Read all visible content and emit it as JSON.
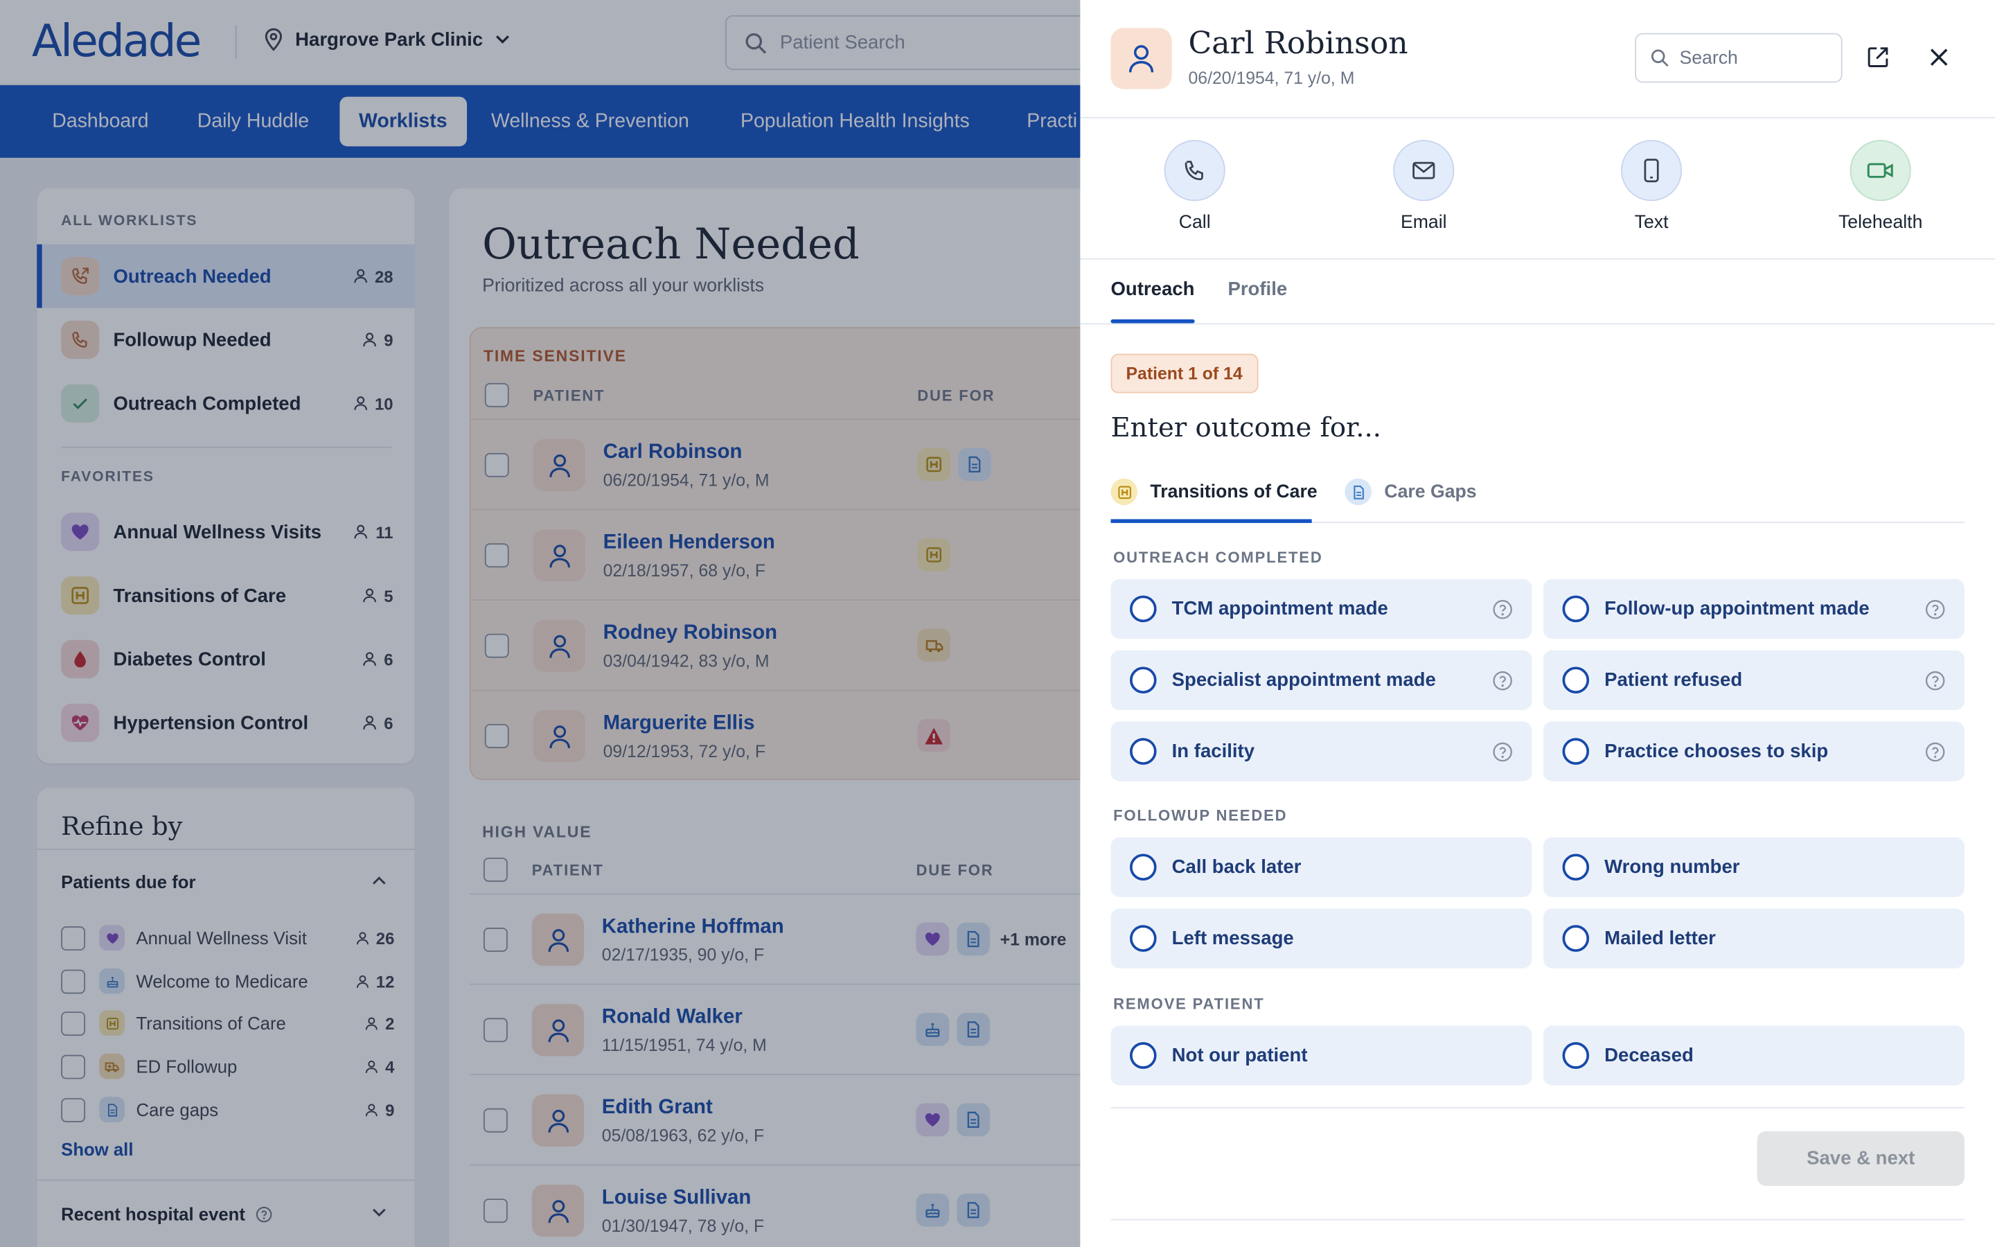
{
  "header": {
    "logo": "Aledade",
    "clinic": "Hargrove Park Clinic",
    "search_placeholder": "Patient Search"
  },
  "nav": [
    {
      "label": "Dashboard"
    },
    {
      "label": "Daily Huddle"
    },
    {
      "label": "Worklists"
    },
    {
      "label": "Wellness & Prevention"
    },
    {
      "label": "Population Health Insights"
    },
    {
      "label": "Practi"
    }
  ],
  "sidebar": {
    "all_label": "ALL WORKLISTS",
    "all": [
      {
        "label": "Outreach Needed",
        "count": "28",
        "icon": "phone-outgoing-icon"
      },
      {
        "label": "Followup Needed",
        "count": "9",
        "icon": "phone-icon"
      },
      {
        "label": "Outreach Completed",
        "count": "10",
        "icon": "check-icon"
      }
    ],
    "fav_label": "FAVORITES",
    "favorites": [
      {
        "label": "Annual Wellness Visits",
        "count": "11",
        "icon": "heart-icon"
      },
      {
        "label": "Transitions of Care",
        "count": "5",
        "icon": "hospital-icon"
      },
      {
        "label": "Diabetes Control",
        "count": "6",
        "icon": "drop-icon"
      },
      {
        "label": "Hypertension Control",
        "count": "6",
        "icon": "heart-pulse-icon"
      }
    ]
  },
  "refine": {
    "title": "Refine by",
    "group": "Patients due for",
    "filters": [
      {
        "label": "Annual Wellness Visit",
        "count": "26",
        "icon": "heart-icon"
      },
      {
        "label": "Welcome to Medicare",
        "count": "12",
        "icon": "cake-icon"
      },
      {
        "label": "Transitions of Care",
        "count": "2",
        "icon": "hospital-icon"
      },
      {
        "label": "ED Followup",
        "count": "4",
        "icon": "ambulance-icon"
      },
      {
        "label": "Care gaps",
        "count": "9",
        "icon": "document-icon"
      }
    ],
    "show_all": "Show all",
    "recent": "Recent hospital event"
  },
  "main": {
    "title": "Outreach Needed",
    "subtitle": "Prioritized across all your worklists",
    "ts_label": "TIME SENSITIVE",
    "hv_label": "HIGH VALUE",
    "col_patient": "PATIENT",
    "col_due": "DUE FOR",
    "time_sensitive": [
      {
        "name": "Carl Robinson",
        "dob": "06/20/1954, 71 y/o, M"
      },
      {
        "name": "Eileen Henderson",
        "dob": "02/18/1957, 68 y/o, F"
      },
      {
        "name": "Rodney Robinson",
        "dob": "03/04/1942, 83 y/o, M"
      },
      {
        "name": "Marguerite Ellis",
        "dob": "09/12/1953, 72 y/o, F"
      }
    ],
    "high_value": [
      {
        "name": "Katherine Hoffman",
        "dob": "02/17/1935, 90 y/o, F",
        "more": "+1 more"
      },
      {
        "name": "Ronald Walker",
        "dob": "11/15/1951, 74 y/o, M"
      },
      {
        "name": "Edith Grant",
        "dob": "05/08/1963, 62 y/o, F"
      },
      {
        "name": "Louise Sullivan",
        "dob": "01/30/1947, 78 y/o, F"
      }
    ]
  },
  "drawer": {
    "name": "Carl Robinson",
    "dob": "06/20/1954, 71 y/o, M",
    "search_placeholder": "Search",
    "actions": [
      {
        "label": "Call",
        "icon": "phone-icon"
      },
      {
        "label": "Email",
        "icon": "envelope-icon"
      },
      {
        "label": "Text",
        "icon": "mobile-icon"
      },
      {
        "label": "Telehealth",
        "icon": "video-icon"
      }
    ],
    "tabs": [
      {
        "label": "Outreach"
      },
      {
        "label": "Profile"
      }
    ],
    "badge": "Patient 1 of 14",
    "heading": "Enter outcome for...",
    "subtabs": [
      {
        "label": "Transitions of Care"
      },
      {
        "label": "Care Gaps"
      }
    ],
    "sections": [
      {
        "label": "OUTREACH COMPLETED",
        "options": [
          "TCM appointment made",
          "Follow-up appointment made",
          "Specialist appointment made",
          "Patient refused",
          "In facility",
          "Practice chooses to skip"
        ]
      },
      {
        "label": "FOLLOWUP NEEDED",
        "options": [
          "Call back later",
          "Wrong number",
          "Left message",
          "Mailed letter"
        ]
      },
      {
        "label": "REMOVE PATIENT",
        "options": [
          "Not our patient",
          "Deceased"
        ]
      }
    ],
    "save": "Save & next"
  },
  "colors": {
    "brand": "#1553c4",
    "link": "#1749a8",
    "time_sensitive_bg": "#fbeee4",
    "option_bg": "#eaf0fa"
  }
}
